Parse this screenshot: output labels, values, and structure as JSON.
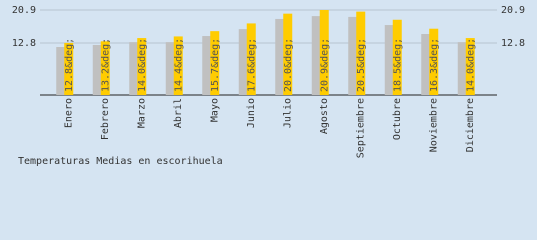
{
  "chart_data": {
    "type": "bar",
    "title": "Temperaturas Medias en escorihuela",
    "categories": [
      "Enero",
      "Febrero",
      "Marzo",
      "Abril",
      "Mayo",
      "Junio",
      "Julio",
      "Agosto",
      "Septiembre",
      "Octubre",
      "Noviembre",
      "Diciembre"
    ],
    "series": [
      {
        "color": "#c0c0c0",
        "values": [
          11.8,
          12.3,
          13.0,
          13.0,
          14.5,
          16.2,
          18.7,
          19.4,
          19.2,
          17.2,
          15.0,
          13.0
        ]
      },
      {
        "color": "#ffcc00",
        "values": [
          12.8,
          13.2,
          14.0,
          14.4,
          15.7,
          17.6,
          20.0,
          20.9,
          20.5,
          18.5,
          16.3,
          14.0
        ],
        "value_labels": [
          "12.8&deg;",
          "13.2&deg;",
          "14.0&deg;",
          "14.4&deg;",
          "15.7&deg;",
          "17.6&deg;",
          "20.0&deg;",
          "20.9&deg;",
          "20.5&deg;",
          "18.5&deg;",
          "16.3&deg;",
          "14.0&deg;"
        ]
      }
    ],
    "ylim": [
      0,
      20.9
    ],
    "yticks": [
      12.8,
      20.9
    ],
    "grid": true
  }
}
